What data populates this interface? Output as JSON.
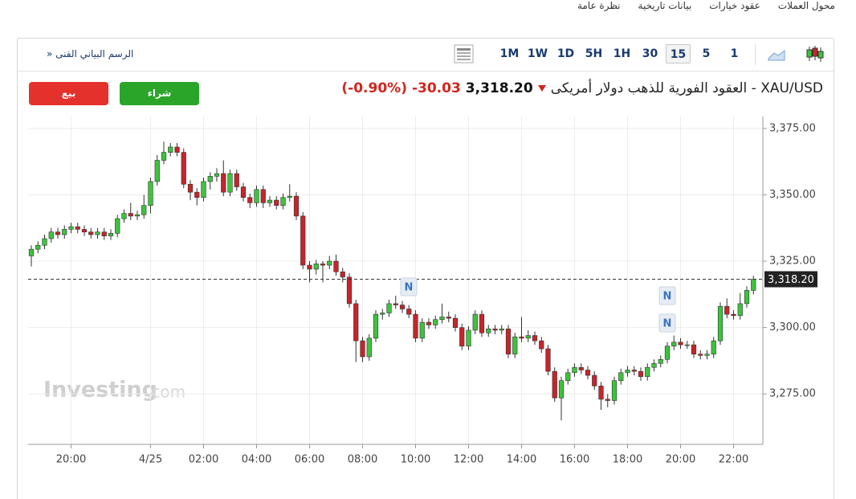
{
  "nav": [
    "نظرة عامة",
    "بيانات تاريخية",
    "عقود خيارات",
    "محول العملات"
  ],
  "toolbar": {
    "chart_link": "الرسم البياني الفنى «",
    "intervals": [
      "1M",
      "1W",
      "1D",
      "5H",
      "1H",
      "30",
      "15",
      "5",
      "1"
    ],
    "active_interval": "15"
  },
  "header": {
    "title": "XAU/USD - العقود الفورية للذهب دولار أمريكى",
    "price": "3,318.20",
    "change": "-30.03",
    "change_pct": "(-0.90%)"
  },
  "buttons": {
    "sell": "بيع",
    "buy": "شراء"
  },
  "watermark": {
    "brand": "Investing",
    "suffix": ".com"
  },
  "chart_data": {
    "type": "candlestick",
    "up_color": "#3cc43c",
    "down_color": "#c8242a",
    "categories": [
      null,
      null,
      null,
      null,
      null,
      null,
      "20:00",
      null,
      null,
      null,
      null,
      null,
      null,
      null,
      null,
      null,
      null,
      null,
      "4/25",
      null,
      null,
      null,
      null,
      null,
      null,
      null,
      "02:00",
      null,
      null,
      null,
      null,
      null,
      null,
      null,
      "04:00",
      null,
      null,
      null,
      null,
      null,
      null,
      null,
      "06:00",
      null,
      null,
      null,
      null,
      null,
      null,
      null,
      "08:00",
      null,
      null,
      null,
      null,
      null,
      null,
      null,
      "10:00",
      null,
      null,
      null,
      null,
      null,
      null,
      null,
      "12:00",
      null,
      null,
      null,
      null,
      null,
      null,
      null,
      "14:00",
      null,
      null,
      null,
      null,
      null,
      null,
      null,
      "16:00",
      null,
      null,
      null,
      null,
      null,
      null,
      null,
      "18:00",
      null,
      null,
      null,
      null,
      null,
      null,
      null,
      "20:00",
      null,
      null,
      null,
      null,
      null,
      null,
      null,
      "22:00",
      null,
      null,
      null
    ],
    "open": [
      3327,
      3329.5,
      3331,
      3333.5,
      3336,
      3335,
      3337,
      3338,
      3337,
      3336,
      3335,
      3336,
      3334.5,
      3335.5,
      3341,
      3343,
      3342,
      3342.5,
      3346,
      3355,
      3363,
      3366,
      3368,
      3366,
      3354,
      3351,
      3349,
      3355,
      3357,
      3358,
      3351,
      3358,
      3353,
      3349,
      3347,
      3352,
      3347,
      3348,
      3346,
      3349,
      3349.5,
      3342,
      3323.5,
      3322,
      3324,
      3323.5,
      3325,
      3321,
      3319,
      3309,
      3295,
      3289,
      3296,
      3305,
      3305.5,
      3309,
      3308.5,
      3307,
      3305,
      3296,
      3302,
      3301,
      3303,
      3304,
      3303.5,
      3300,
      3293,
      3299,
      3305,
      3298,
      3299.5,
      3299,
      3299.5,
      3290,
      3296.5,
      3296,
      3297,
      3295,
      3292,
      3283.5,
      3273.5,
      3280,
      3283,
      3285,
      3284,
      3282,
      3278,
      3273,
      3272.5,
      3280,
      3283,
      3284,
      3283.5,
      3281.5,
      3285,
      3286.5,
      3288,
      3293,
      3294.5,
      3293.5,
      3293.5,
      3290,
      3289.5,
      3290,
      3295,
      3308,
      3305,
      3304.5,
      3309,
      3314
    ],
    "high": [
      3331,
      3332.5,
      3335,
      3337.5,
      3337.5,
      3338.5,
      3339.5,
      3339.5,
      3338.5,
      3337.5,
      3337.5,
      3337.5,
      3337,
      3342.5,
      3344.5,
      3347,
      3344,
      3350,
      3356.5,
      3365,
      3370,
      3369.5,
      3369.5,
      3367.5,
      3355.5,
      3352.5,
      3356.5,
      3358.5,
      3360,
      3363,
      3359.5,
      3359.5,
      3354.5,
      3350.5,
      3353.5,
      3353.5,
      3349.5,
      3349.5,
      3350.5,
      3354,
      3351,
      3343.5,
      3325,
      3325.5,
      3325,
      3327,
      3327.5,
      3322.5,
      3320.5,
      3310.5,
      3296.5,
      3297.5,
      3306.5,
      3307,
      3310.5,
      3312,
      3310,
      3308.5,
      3306.5,
      3303.5,
      3303.5,
      3304.5,
      3309,
      3306,
      3305,
      3301.5,
      3300.5,
      3306.5,
      3306.5,
      3301,
      3301,
      3301,
      3301,
      3298,
      3304,
      3299,
      3298.5,
      3296.5,
      3293.5,
      3285,
      3281.5,
      3284.5,
      3286.5,
      3286.5,
      3285.5,
      3283.5,
      3279.5,
      3275,
      3281.5,
      3284.5,
      3285.5,
      3285.5,
      3285,
      3286.5,
      3288,
      3289.5,
      3294.5,
      3297,
      3296,
      3295,
      3295,
      3291.5,
      3291.5,
      3296.5,
      3309.5,
      3311,
      3306.5,
      3313,
      3315.5,
      3319.5
    ],
    "low": [
      3323,
      3328,
      3329.5,
      3332,
      3333.5,
      3333.5,
      3335.5,
      3335.5,
      3334.5,
      3333.5,
      3333.5,
      3333,
      3333,
      3334,
      3339.5,
      3340.5,
      3340.5,
      3341,
      3343,
      3353.5,
      3361.5,
      3364.5,
      3364.5,
      3352.5,
      3348,
      3346,
      3347.5,
      3352,
      3355,
      3349.5,
      3349.5,
      3351.5,
      3347.5,
      3345,
      3345.5,
      3345,
      3345.5,
      3344.5,
      3344.5,
      3347.5,
      3340.5,
      3322,
      3317,
      3320,
      3317,
      3322,
      3319.5,
      3317,
      3307.5,
      3287,
      3287,
      3287.5,
      3294.5,
      3303,
      3304,
      3307,
      3305.5,
      3303.5,
      3294.5,
      3294.5,
      3299.5,
      3299.5,
      3301.5,
      3302,
      3298.5,
      3291.5,
      3291.5,
      3297.5,
      3296.5,
      3296.5,
      3297.5,
      3297.5,
      3288.5,
      3288.5,
      3294.5,
      3294.5,
      3293.5,
      3290.5,
      3282,
      3272,
      3265,
      3278.5,
      3281.5,
      3282.5,
      3280.5,
      3276.5,
      3269,
      3270,
      3271,
      3278.5,
      3281.5,
      3282,
      3280,
      3280,
      3283.5,
      3285,
      3286.5,
      3291.5,
      3292,
      3292,
      3288.5,
      3288,
      3288,
      3288.5,
      3293.5,
      3303.5,
      3303,
      3303,
      3307.5,
      3312.5
    ],
    "close": [
      3329.5,
      3331,
      3333.5,
      3336,
      3335,
      3337,
      3338,
      3337,
      3336,
      3335,
      3336,
      3334.5,
      3335.5,
      3341,
      3343,
      3342,
      3342.5,
      3346,
      3355,
      3363,
      3366,
      3368,
      3366,
      3354,
      3351,
      3349,
      3355,
      3357,
      3358,
      3351,
      3358,
      3353,
      3349,
      3347,
      3352,
      3347,
      3348,
      3346,
      3349,
      3349.5,
      3342,
      3323.5,
      3322,
      3324,
      3323.5,
      3325,
      3321,
      3319,
      3309,
      3295,
      3289,
      3296,
      3305,
      3305.5,
      3309,
      3308.5,
      3307,
      3305,
      3296,
      3302,
      3301,
      3303,
      3304,
      3303.5,
      3300,
      3293,
      3299,
      3305,
      3298,
      3299.5,
      3299,
      3299.5,
      3290,
      3296.5,
      3296,
      3297,
      3295,
      3292,
      3283.5,
      3273.5,
      3280,
      3283,
      3285,
      3284,
      3282,
      3278,
      3273,
      3272.5,
      3280,
      3283,
      3284,
      3283.5,
      3281.5,
      3285,
      3286.5,
      3288,
      3293,
      3294.5,
      3293.5,
      3293.5,
      3290,
      3289.5,
      3290,
      3295,
      3308,
      3305,
      3304.5,
      3309,
      3314,
      3318.2
    ],
    "ylim": [
      3256,
      3379.5
    ],
    "yticks": [
      {
        "value": 3275,
        "label": "3,275.00"
      },
      {
        "value": 3300,
        "label": "3,300.00"
      },
      {
        "value": 3325,
        "label": "3,325.00"
      },
      {
        "value": 3350,
        "label": "3,350.00"
      },
      {
        "value": 3375,
        "label": "3,375.00"
      }
    ],
    "last_price": {
      "value": 3318.2,
      "label": "3,318.20"
    },
    "annotations": [
      "N",
      "N",
      "N"
    ],
    "grid": true
  }
}
